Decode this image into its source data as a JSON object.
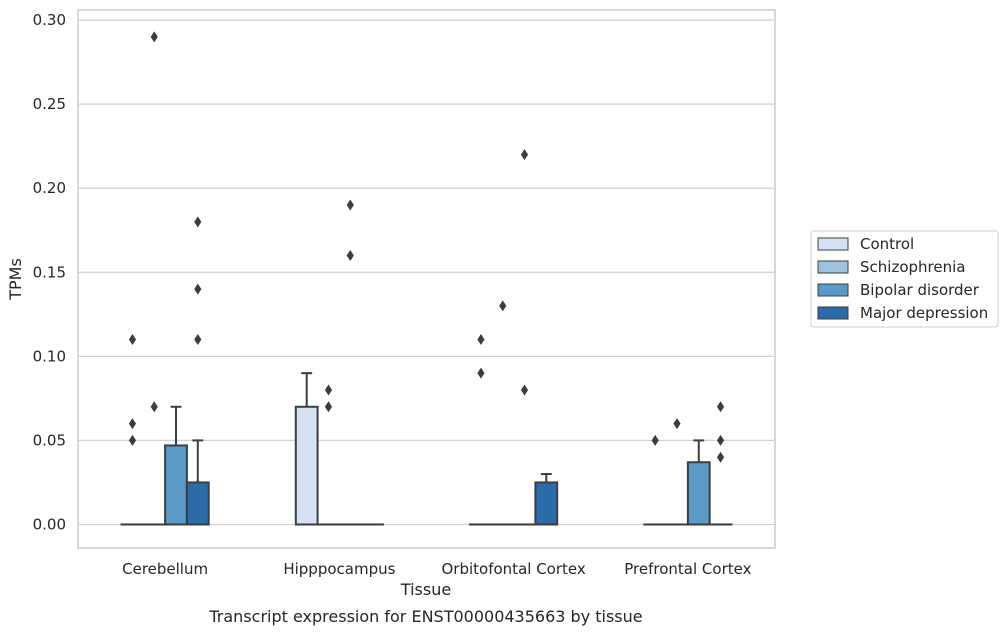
{
  "caption": "Transcript expression for ENST00000435663 by tissue",
  "chart_data": {
    "type": "box",
    "title": "",
    "xlabel": "Tissue",
    "ylabel": "TPMs",
    "ylim": [
      -0.014,
      0.306
    ],
    "yticks": [
      "0.00",
      "0.05",
      "0.10",
      "0.15",
      "0.20",
      "0.25",
      "0.30"
    ],
    "grid": "horizontal",
    "legend_position": "right",
    "categories": [
      "Cerebellum",
      "Hipppocampus",
      "Orbitofontal Cortex",
      "Prefrontal Cortex"
    ],
    "series": [
      {
        "name": "Control",
        "color": "#d4e2f1",
        "boxes": [
          {
            "q1": 0,
            "median": 0,
            "q3": 0,
            "whisker_low": 0,
            "whisker_high": 0,
            "outliers": [
              0.06,
              0.05,
              0.11
            ]
          },
          {
            "q1": 0,
            "median": 0,
            "q3": 0.07,
            "whisker_low": 0,
            "whisker_high": 0.09,
            "outliers": []
          },
          {
            "q1": 0,
            "median": 0,
            "q3": 0,
            "whisker_low": 0,
            "whisker_high": 0,
            "outliers": [
              0.11,
              0.09
            ]
          },
          {
            "q1": 0,
            "median": 0,
            "q3": 0,
            "whisker_low": 0,
            "whisker_high": 0,
            "outliers": [
              0.05
            ]
          }
        ]
      },
      {
        "name": "Schizophrenia",
        "color": "#9cc3df",
        "boxes": [
          {
            "q1": 0,
            "median": 0,
            "q3": 0,
            "whisker_low": 0,
            "whisker_high": 0,
            "outliers": [
              0.29,
              0.07
            ]
          },
          {
            "q1": 0,
            "median": 0,
            "q3": 0,
            "whisker_low": 0,
            "whisker_high": 0,
            "outliers": [
              0.08,
              0.07
            ]
          },
          {
            "q1": 0,
            "median": 0,
            "q3": 0,
            "whisker_low": 0,
            "whisker_high": 0,
            "outliers": [
              0.13
            ]
          },
          {
            "q1": 0,
            "median": 0,
            "q3": 0,
            "whisker_low": 0,
            "whisker_high": 0,
            "outliers": [
              0.06
            ]
          }
        ]
      },
      {
        "name": "Bipolar disorder",
        "color": "#5a9ac8",
        "boxes": [
          {
            "q1": 0,
            "median": 0,
            "q3": 0.047,
            "whisker_low": 0,
            "whisker_high": 0.07,
            "outliers": []
          },
          {
            "q1": 0,
            "median": 0,
            "q3": 0,
            "whisker_low": 0,
            "whisker_high": 0,
            "outliers": [
              0.16,
              0.19
            ]
          },
          {
            "q1": 0,
            "median": 0,
            "q3": 0,
            "whisker_low": 0,
            "whisker_high": 0,
            "outliers": [
              0.22,
              0.08
            ]
          },
          {
            "q1": 0,
            "median": 0,
            "q3": 0.037,
            "whisker_low": 0,
            "whisker_high": 0.05,
            "outliers": []
          }
        ]
      },
      {
        "name": "Major depression",
        "color": "#2b6ba8",
        "boxes": [
          {
            "q1": 0,
            "median": 0,
            "q3": 0.025,
            "whisker_low": 0,
            "whisker_high": 0.05,
            "outliers": [
              0.18,
              0.14,
              0.11
            ]
          },
          {
            "q1": 0,
            "median": 0,
            "q3": 0,
            "whisker_low": 0,
            "whisker_high": 0,
            "outliers": []
          },
          {
            "q1": 0,
            "median": 0,
            "q3": 0.025,
            "whisker_low": 0,
            "whisker_high": 0.03,
            "outliers": []
          },
          {
            "q1": 0,
            "median": 0,
            "q3": 0,
            "whisker_low": 0,
            "whisker_high": 0,
            "outliers": [
              0.07,
              0.05,
              0.04
            ]
          }
        ]
      }
    ]
  }
}
